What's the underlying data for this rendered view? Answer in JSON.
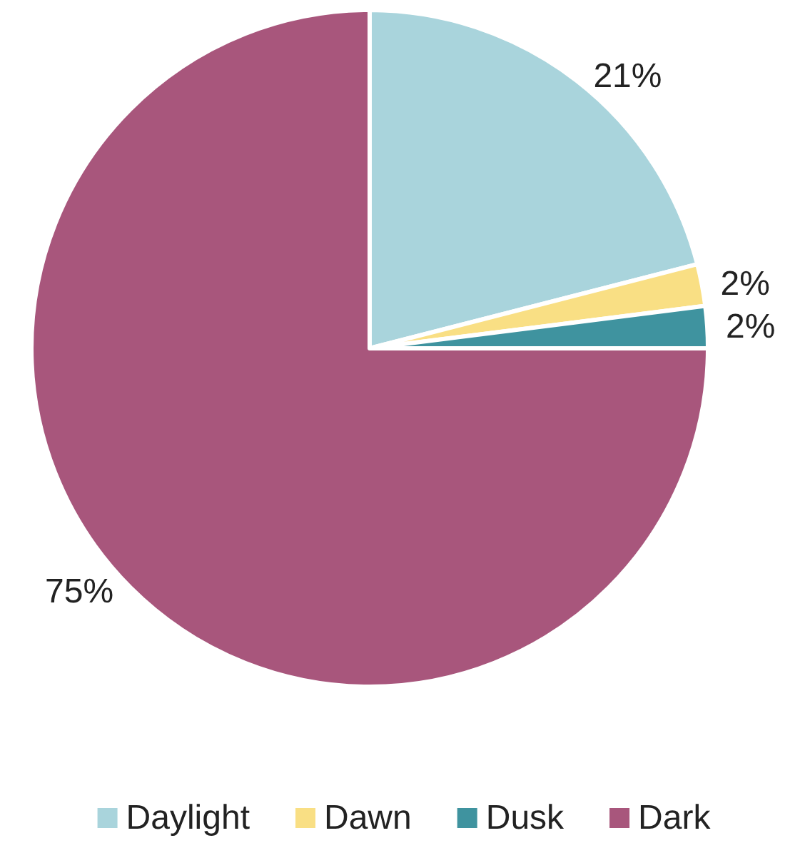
{
  "chart_data": {
    "type": "pie",
    "categories": [
      "Daylight",
      "Dawn",
      "Dusk",
      "Dark"
    ],
    "values": [
      21,
      2,
      2,
      75
    ],
    "colors": [
      "#a9d4dc",
      "#f9df84",
      "#3f939f",
      "#a8567c"
    ],
    "value_labels": [
      "21%",
      "2%",
      "2%",
      "75%"
    ],
    "legend": "bottom"
  }
}
